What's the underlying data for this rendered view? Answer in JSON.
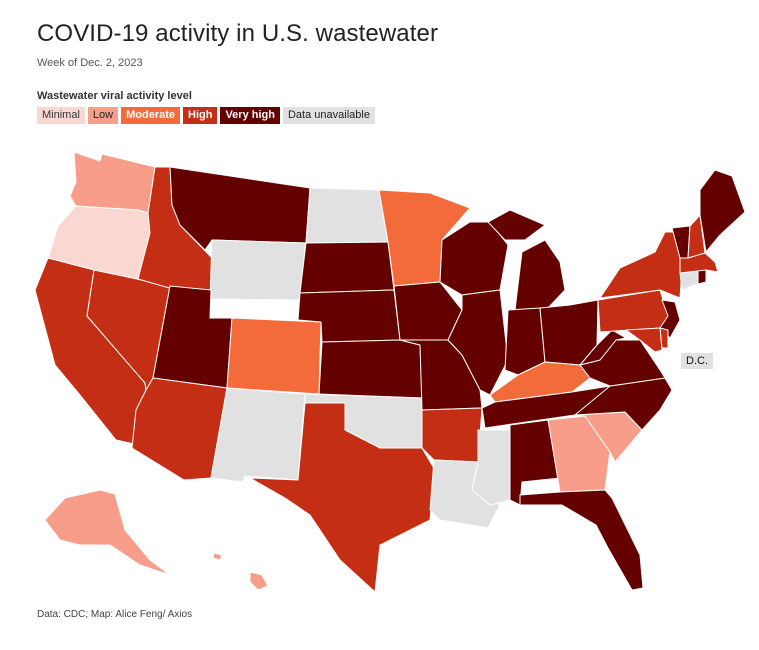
{
  "header": {
    "title": "COVID-19 activity in U.S. wastewater",
    "subtitle": "Week of Dec. 2, 2023"
  },
  "legend": {
    "title": "Wastewater viral activity level",
    "items": [
      "Minimal",
      "Low",
      "Moderate",
      "High",
      "Very high",
      "Data unavailable"
    ]
  },
  "colors": {
    "minimal": "#fbd7d2",
    "low": "#f79d89",
    "moderate": "#f46b3b",
    "high": "#c42e14",
    "very_high": "#650000",
    "data_unavailable": "#e1e1e1"
  },
  "map": {
    "dc_label": "D.C.",
    "dc_level": "data_unavailable",
    "state_levels": {
      "WA": "low",
      "OR": "minimal",
      "CA": "high",
      "NV": "high",
      "ID": "high",
      "MT": "very_high",
      "WY": "data_unavailable",
      "UT": "very_high",
      "AZ": "high",
      "CO": "moderate",
      "NM": "data_unavailable",
      "ND": "data_unavailable",
      "SD": "very_high",
      "NE": "very_high",
      "KS": "very_high",
      "OK": "data_unavailable",
      "TX": "high",
      "MN": "moderate",
      "IA": "very_high",
      "MO": "very_high",
      "AR": "high",
      "LA": "data_unavailable",
      "WI": "very_high",
      "IL": "very_high",
      "MS": "data_unavailable",
      "MI": "very_high",
      "IN": "very_high",
      "OH": "very_high",
      "KY": "moderate",
      "TN": "very_high",
      "AL": "very_high",
      "GA": "low",
      "FL": "very_high",
      "SC": "low",
      "NC": "very_high",
      "VA": "very_high",
      "WV": "very_high",
      "PA": "high",
      "NY": "high",
      "NJ": "very_high",
      "DE": "high",
      "MD": "high",
      "CT": "data_unavailable",
      "RI": "very_high",
      "MA": "high",
      "VT": "very_high",
      "NH": "high",
      "ME": "very_high",
      "AK": "low",
      "HI": "low"
    }
  },
  "footer": {
    "source": "Data: CDC; Map: Alice Feng/ Axios"
  }
}
